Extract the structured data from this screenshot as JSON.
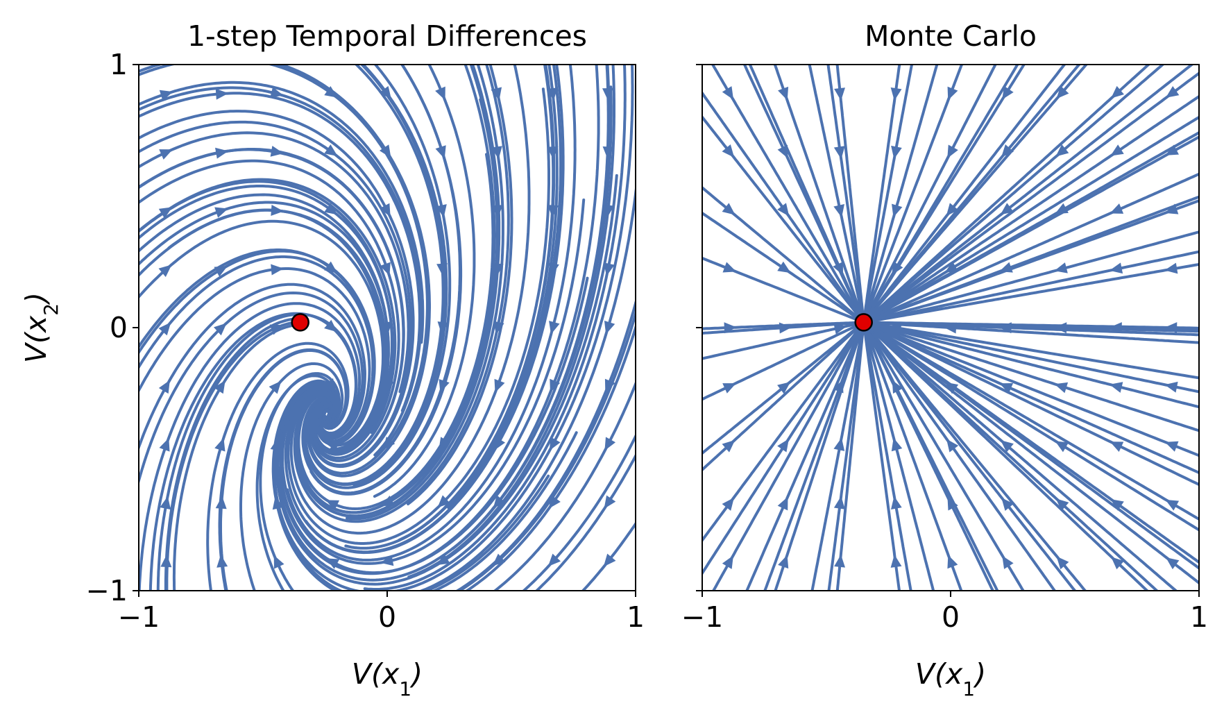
{
  "chart_data": [
    {
      "type": "streamplot",
      "title": "1-step Temporal Differences",
      "xlabel_base": "V(x",
      "xlabel_sub": "1",
      "ylabel_base": "V(x",
      "ylabel_sub": "2",
      "xlim": [
        -1,
        1
      ],
      "ylim": [
        -1,
        1
      ],
      "xticks": [
        -1,
        0,
        1
      ],
      "yticks": [
        -1,
        0,
        1
      ],
      "xtick_labels": [
        "−1",
        "0",
        "1"
      ],
      "ytick_labels": [
        "−1",
        "0",
        "1"
      ],
      "fixed_point": [
        -0.35,
        0.02
      ],
      "field": "td",
      "stream_color": "#4c72b0",
      "fixed_point_color": "#e00000"
    },
    {
      "type": "streamplot",
      "title": "Monte Carlo",
      "xlabel_base": "V(x",
      "xlabel_sub": "1",
      "ylabel_base": "",
      "ylabel_sub": "",
      "xlim": [
        -1,
        1
      ],
      "ylim": [
        -1,
        1
      ],
      "xticks": [
        -1,
        0,
        1
      ],
      "yticks": [
        -1,
        0,
        1
      ],
      "xtick_labels": [
        "−1",
        "0",
        "1"
      ],
      "ytick_labels": [],
      "fixed_point": [
        -0.35,
        0.02
      ],
      "field": "mc",
      "stream_color": "#4c72b0",
      "fixed_point_color": "#e00000"
    }
  ]
}
